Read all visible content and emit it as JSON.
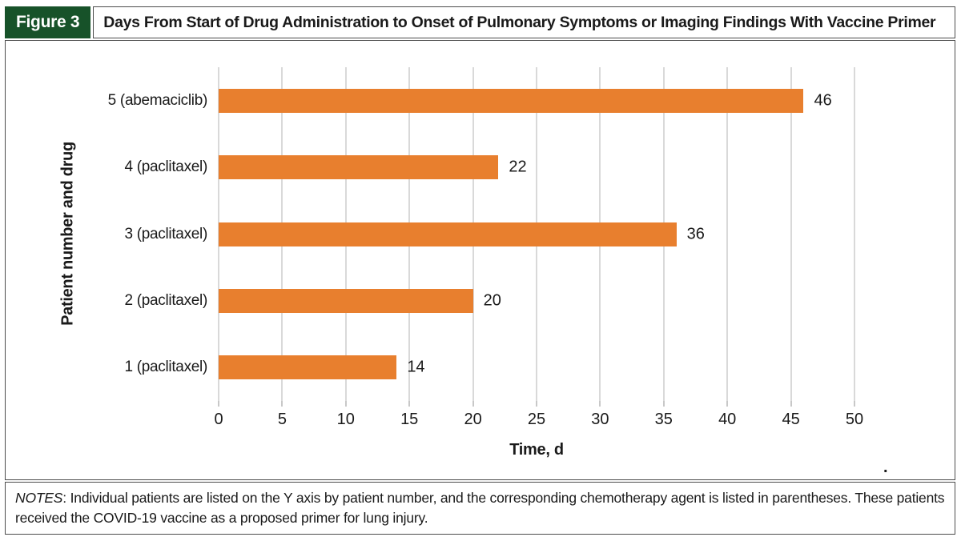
{
  "figure": {
    "label": "Figure 3",
    "title": "Days From Start of Drug Administration to Onset of Pulmonary Symptoms or Imaging Findings With Vaccine Primer"
  },
  "chart_data": {
    "type": "bar",
    "orientation": "horizontal",
    "title": "Days From Start of Drug Administration to Onset of Pulmonary Symptoms or Imaging Findings With Vaccine Primer",
    "categories": [
      "5 (abemaciclib)",
      "4 (paclitaxel)",
      "3 (paclitaxel)",
      "2 (paclitaxel)",
      "1 (paclitaxel)"
    ],
    "values": [
      46,
      22,
      36,
      20,
      14
    ],
    "xlabel": "Time, d",
    "ylabel": "Patient number and drug",
    "xlim": [
      0,
      50
    ],
    "xticks": [
      0,
      5,
      10,
      15,
      20,
      25,
      30,
      35,
      40,
      45,
      50
    ],
    "grid": true,
    "legend": false,
    "bar_color": "#e87f2e",
    "gridline_color": "#d9d9d9",
    "tick_color": "#c8c8c8"
  },
  "notes": {
    "label": "NOTES",
    "body": ": Individual patients are listed on the Y axis by patient number, and the corresponding chemotherapy agent is listed in parentheses. These patients received the COVID-19 vaccine as a proposed primer for lung injury."
  },
  "misc": {
    "stray_mark": "."
  },
  "colors": {
    "figure_label_bg": "#175229",
    "panel_border": "#4d4d4d",
    "text": "#1a1a1a"
  }
}
